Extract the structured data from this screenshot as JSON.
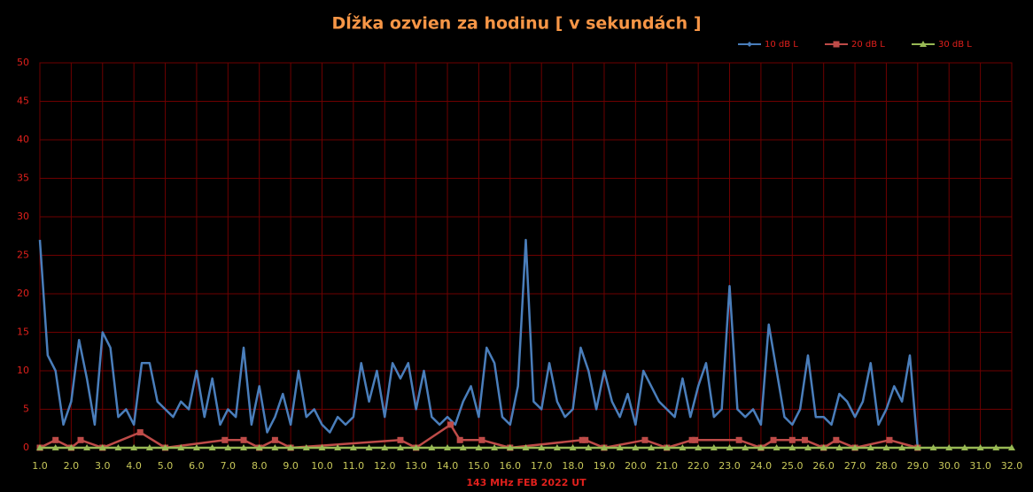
{
  "chart_data": {
    "type": "line",
    "title": "Dĺžka ozvien za hodinu [ v sekundách ]",
    "x_label": "143 MHz FEB  2022  UT",
    "legend": "top-right",
    "grid": true,
    "xlim": [
      1,
      32
    ],
    "ylim": [
      0,
      50
    ],
    "yticks": [
      0,
      5,
      10,
      15,
      20,
      25,
      30,
      35,
      40,
      45,
      50
    ],
    "xticks": [
      {
        "value": 1,
        "label": "1.0"
      },
      {
        "value": 2,
        "label": "2.0"
      },
      {
        "value": 3,
        "label": "3.0"
      },
      {
        "value": 4,
        "label": "4.0"
      },
      {
        "value": 5,
        "label": "5.0"
      },
      {
        "value": 6,
        "label": "6.0"
      },
      {
        "value": 7,
        "label": "7.0"
      },
      {
        "value": 8,
        "label": "8.0"
      },
      {
        "value": 9,
        "label": "9.0"
      },
      {
        "value": 10,
        "label": "10.0"
      },
      {
        "value": 11,
        "label": "11.0"
      },
      {
        "value": 12,
        "label": "12.0"
      },
      {
        "value": 13,
        "label": "13.0"
      },
      {
        "value": 14,
        "label": "14.0"
      },
      {
        "value": 15,
        "label": "15.0"
      },
      {
        "value": 16,
        "label": "16.0"
      },
      {
        "value": 17,
        "label": "17.0"
      },
      {
        "value": 18,
        "label": "18.0"
      },
      {
        "value": 19,
        "label": "19.0"
      },
      {
        "value": 20,
        "label": "20.0"
      },
      {
        "value": 21,
        "label": "21.0"
      },
      {
        "value": 22,
        "label": "22.0"
      },
      {
        "value": 23,
        "label": "23.0"
      },
      {
        "value": 24,
        "label": "24.0"
      },
      {
        "value": 25,
        "label": "25.0"
      },
      {
        "value": 26,
        "label": "26.0"
      },
      {
        "value": 27,
        "label": "27.0"
      },
      {
        "value": 28,
        "label": "28.0"
      },
      {
        "value": 29,
        "label": "29.0"
      },
      {
        "value": 30,
        "label": "30.0"
      },
      {
        "value": 31,
        "label": "31.0"
      },
      {
        "value": 32,
        "label": "32.0"
      }
    ],
    "series": [
      {
        "name": "10 dB L",
        "color": "#4a7ebb",
        "marker": "diamond",
        "x": [
          1,
          1.25,
          1.5,
          1.75,
          2,
          2.25,
          2.5,
          2.75,
          3,
          3.25,
          3.5,
          3.75,
          4,
          4.25,
          4.5,
          4.75,
          5,
          5.25,
          5.5,
          5.75,
          6,
          6.25,
          6.5,
          6.75,
          7,
          7.25,
          7.5,
          7.75,
          8,
          8.25,
          8.5,
          8.75,
          9,
          9.25,
          9.5,
          9.75,
          10,
          10.25,
          10.5,
          10.75,
          11,
          11.25,
          11.5,
          11.75,
          12,
          12.25,
          12.5,
          12.75,
          13,
          13.25,
          13.5,
          13.75,
          14,
          14.25,
          14.5,
          14.75,
          15,
          15.25,
          15.5,
          15.75,
          16,
          16.25,
          16.5,
          16.75,
          17,
          17.25,
          17.5,
          17.75,
          18,
          18.25,
          18.5,
          18.75,
          19,
          19.25,
          19.5,
          19.75,
          20,
          20.25,
          20.5,
          20.75,
          21,
          21.25,
          21.5,
          21.75,
          22,
          22.25,
          22.5,
          22.75,
          23,
          23.25,
          23.5,
          23.75,
          24,
          24.25,
          24.5,
          24.75,
          25,
          25.25,
          25.5,
          25.75,
          26,
          26.25,
          26.5,
          26.75,
          27,
          27.25,
          27.5,
          27.75,
          28,
          28.25,
          28.5,
          28.75,
          29
        ],
        "values": [
          27,
          12,
          10,
          3,
          6,
          14,
          9,
          3,
          15,
          13,
          4,
          5,
          3,
          11,
          11,
          6,
          5,
          4,
          6,
          5,
          10,
          4,
          9,
          3,
          5,
          4,
          13,
          3,
          8,
          2,
          4,
          7,
          3,
          10,
          4,
          5,
          3,
          2,
          4,
          3,
          4,
          11,
          6,
          10,
          4,
          11,
          9,
          11,
          5,
          10,
          4,
          3,
          4,
          3,
          6,
          8,
          4,
          13,
          11,
          4,
          3,
          8,
          27,
          6,
          5,
          11,
          6,
          4,
          5,
          13,
          10,
          5,
          10,
          6,
          4,
          7,
          3,
          10,
          8,
          6,
          5,
          4,
          9,
          4,
          8,
          11,
          4,
          5,
          21,
          5,
          4,
          5,
          3,
          16,
          10,
          4,
          3,
          5,
          12,
          4,
          4,
          3,
          7,
          6,
          4,
          6,
          11,
          3,
          5,
          8,
          6,
          12,
          0
        ]
      },
      {
        "name": "20 dB L",
        "color": "#be4b48",
        "marker": "square",
        "x": [
          1,
          1.5,
          2,
          2.3,
          3,
          4.2,
          5,
          6.9,
          7.5,
          8,
          8.5,
          9,
          12.5,
          13,
          14.1,
          14.4,
          15.1,
          16,
          18.3,
          18.4,
          19,
          20.3,
          21,
          21.8,
          21.9,
          23.3,
          24,
          24.4,
          25,
          25.4,
          26,
          26.4,
          27,
          28.1,
          29
        ],
        "values": [
          0,
          1,
          0,
          1,
          0,
          2,
          0,
          1,
          1,
          0,
          1,
          0,
          1,
          0,
          3,
          1,
          1,
          0,
          1,
          1,
          0,
          1,
          0,
          1,
          1,
          1,
          0,
          1,
          1,
          1,
          0,
          1,
          0,
          1,
          0
        ]
      },
      {
        "name": "30 dB L",
        "color": "#98b954",
        "marker": "triangle",
        "x": [
          1,
          1.5,
          2,
          2.5,
          3,
          3.5,
          4,
          4.5,
          5,
          5.5,
          6,
          6.5,
          7,
          7.5,
          8,
          8.5,
          9,
          9.5,
          10,
          10.5,
          11,
          11.5,
          12,
          12.5,
          13,
          13.5,
          14,
          14.5,
          15,
          15.5,
          16,
          16.5,
          17,
          17.5,
          18,
          18.5,
          19,
          19.5,
          20,
          20.5,
          21,
          21.5,
          22,
          22.5,
          23,
          23.5,
          24,
          24.5,
          25,
          25.5,
          26,
          26.5,
          27,
          27.5,
          28,
          28.5,
          29,
          29.5,
          30,
          30.5,
          31,
          31.5,
          32
        ],
        "values": [
          0,
          0,
          0,
          0,
          0,
          0,
          0,
          0,
          0,
          0,
          0,
          0,
          0,
          0,
          0,
          0,
          0,
          0,
          0,
          0,
          0,
          0,
          0,
          0,
          0,
          0,
          0,
          0,
          0,
          0,
          0,
          0,
          0,
          0,
          0,
          0,
          0,
          0,
          0,
          0,
          0,
          0,
          0,
          0,
          0,
          0,
          0,
          0,
          0,
          0,
          0,
          0,
          0,
          0,
          0,
          0,
          0,
          0,
          0,
          0,
          0,
          0,
          0
        ]
      }
    ]
  }
}
